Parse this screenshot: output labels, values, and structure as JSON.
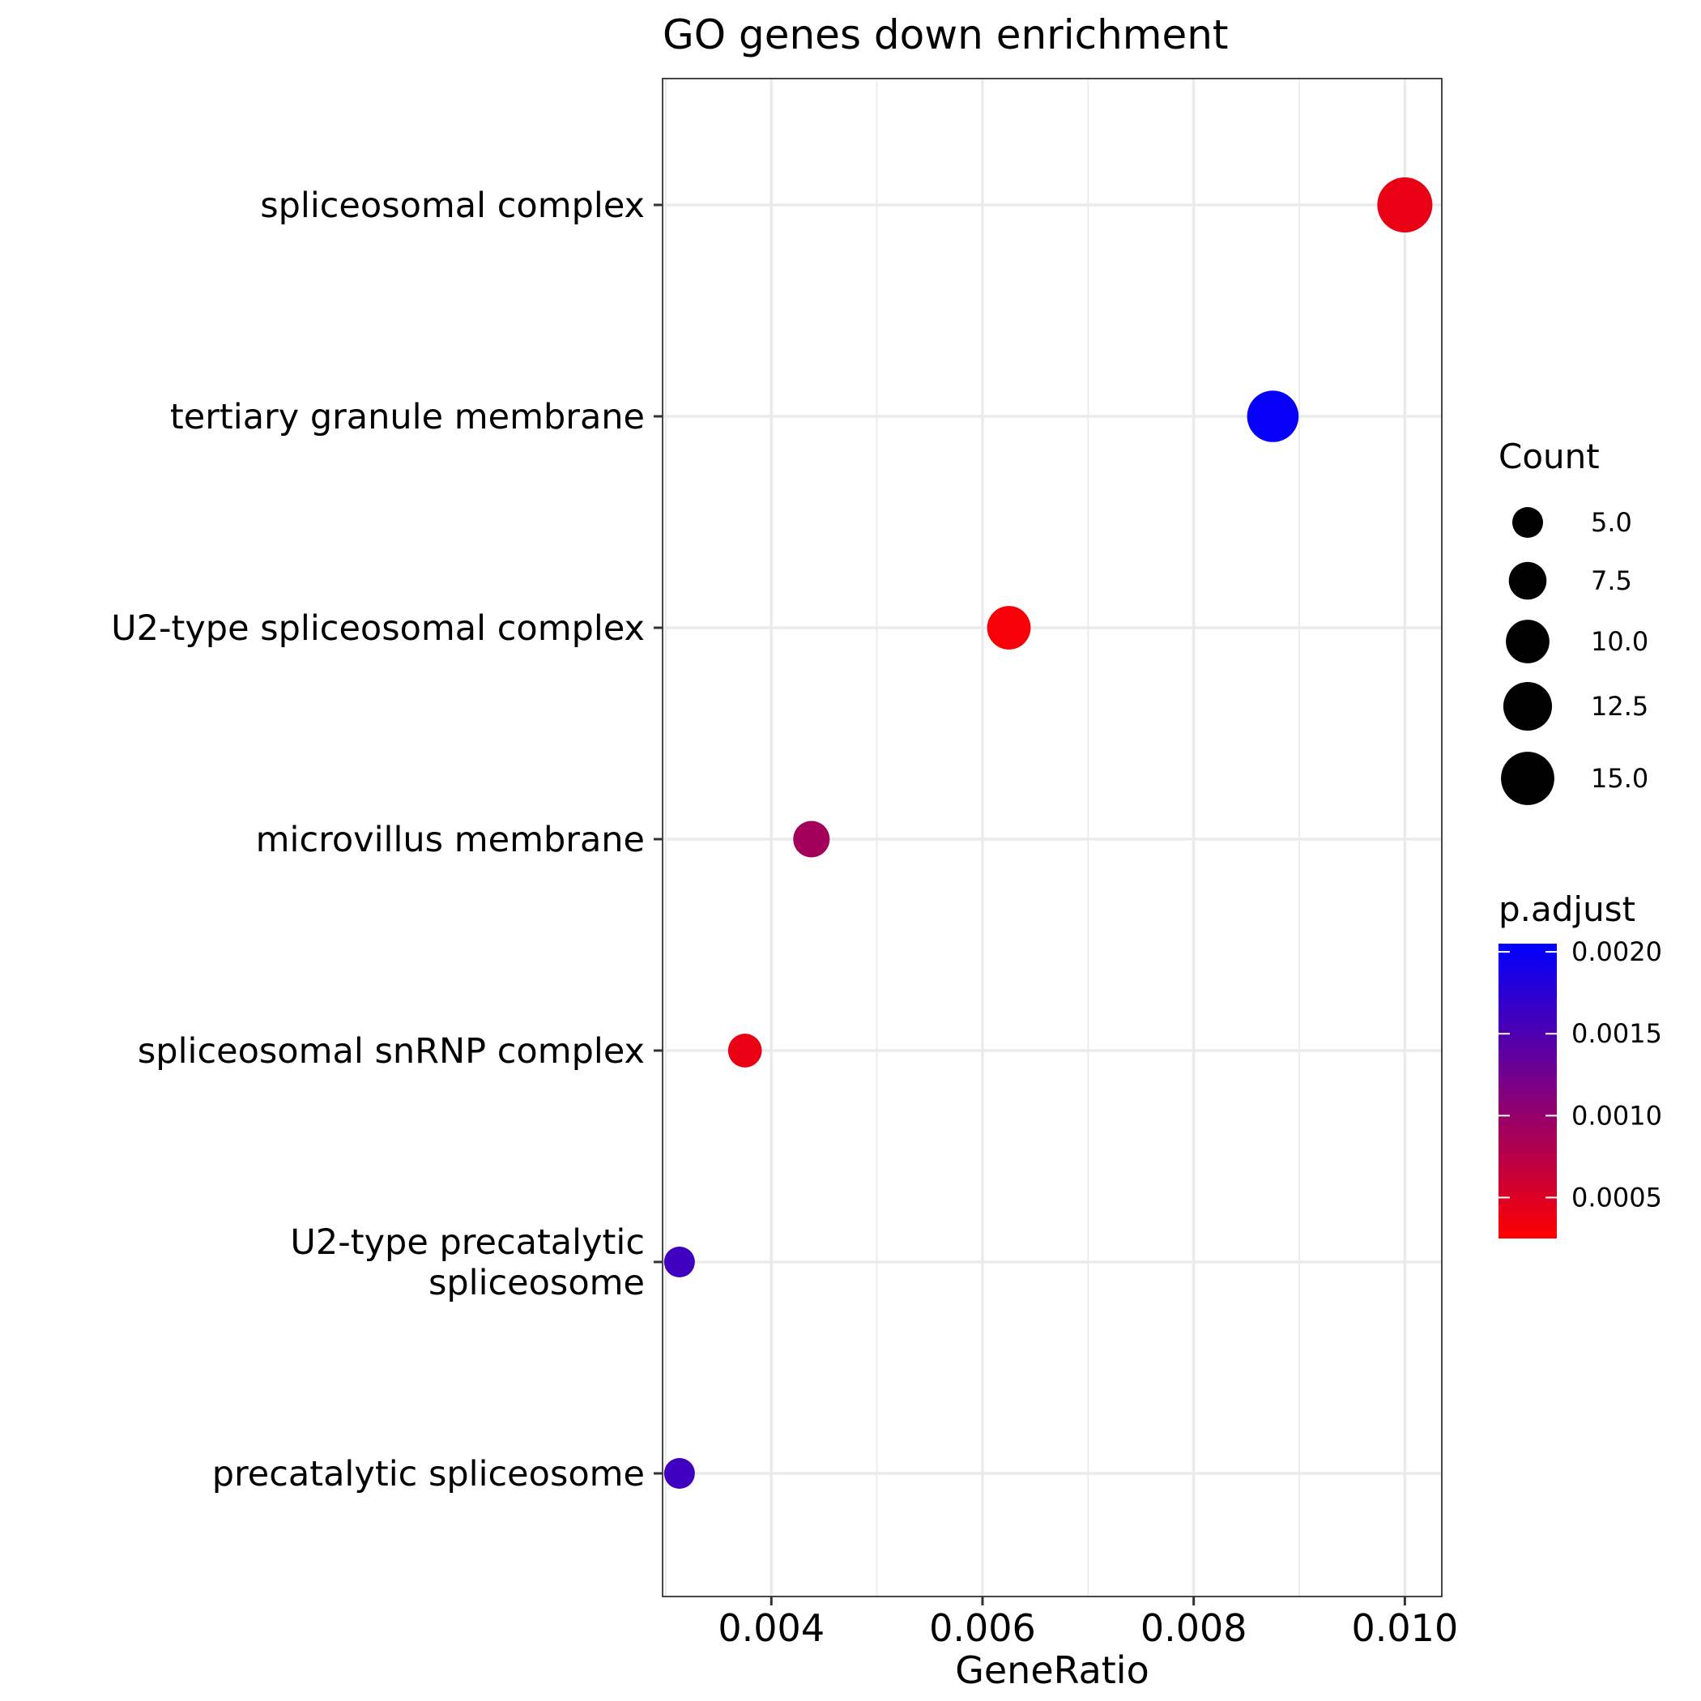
{
  "chart_data": {
    "type": "scatter",
    "title": "GO genes down enrichment",
    "xlabel": "GeneRatio",
    "ylabel": "",
    "xlim": [
      0.00297,
      0.01035
    ],
    "x_ticks": [
      0.004,
      0.006,
      0.008,
      0.01
    ],
    "x_tick_labels": [
      "0.004",
      "0.006",
      "0.008",
      "0.010"
    ],
    "grid": true,
    "categories": [
      "spliceosomal complex",
      "tertiary granule membrane",
      "U2-type spliceosomal complex",
      "microvillus membrane",
      "spliceosomal snRNP complex",
      "U2-type precatalytic spliceosome",
      "precatalytic spliceosome"
    ],
    "category_label_lines": [
      [
        "spliceosomal complex"
      ],
      [
        "tertiary granule membrane"
      ],
      [
        "U2-type spliceosomal complex"
      ],
      [
        "microvillus membrane"
      ],
      [
        "spliceosomal snRNP complex"
      ],
      [
        "U2-type precatalytic",
        "spliceosome"
      ],
      [
        "precatalytic spliceosome"
      ]
    ],
    "points": [
      {
        "category": "spliceosomal complex",
        "gene_ratio": 0.01,
        "count": 16,
        "p_adjust": 0.0004
      },
      {
        "category": "tertiary granule membrane",
        "gene_ratio": 0.00875,
        "count": 14,
        "p_adjust": 0.002
      },
      {
        "category": "U2-type spliceosomal complex",
        "gene_ratio": 0.00625,
        "count": 10,
        "p_adjust": 0.0003
      },
      {
        "category": "microvillus membrane",
        "gene_ratio": 0.00438,
        "count": 7,
        "p_adjust": 0.0009
      },
      {
        "category": "spliceosomal snRNP complex",
        "gene_ratio": 0.00375,
        "count": 6,
        "p_adjust": 0.0004
      },
      {
        "category": "U2-type precatalytic spliceosome",
        "gene_ratio": 0.00313,
        "count": 5,
        "p_adjust": 0.0016
      },
      {
        "category": "precatalytic spliceosome",
        "gene_ratio": 0.00313,
        "count": 5,
        "p_adjust": 0.0016
      }
    ],
    "size_legend": {
      "title": "Count",
      "values": [
        5.0,
        7.5,
        10.0,
        12.5,
        15.0
      ],
      "labels": [
        "5.0",
        "7.5",
        "10.0",
        "12.5",
        "15.0"
      ]
    },
    "color_legend": {
      "title": "p.adjust",
      "low_color": "#ff0000",
      "high_color": "#0000ff",
      "range": [
        0.00025,
        0.00205
      ],
      "ticks": [
        0.002,
        0.0015,
        0.001,
        0.0005
      ],
      "tick_labels": [
        "0.0020",
        "0.0015",
        "0.0010",
        "0.0005"
      ]
    },
    "legend_position": "right"
  }
}
